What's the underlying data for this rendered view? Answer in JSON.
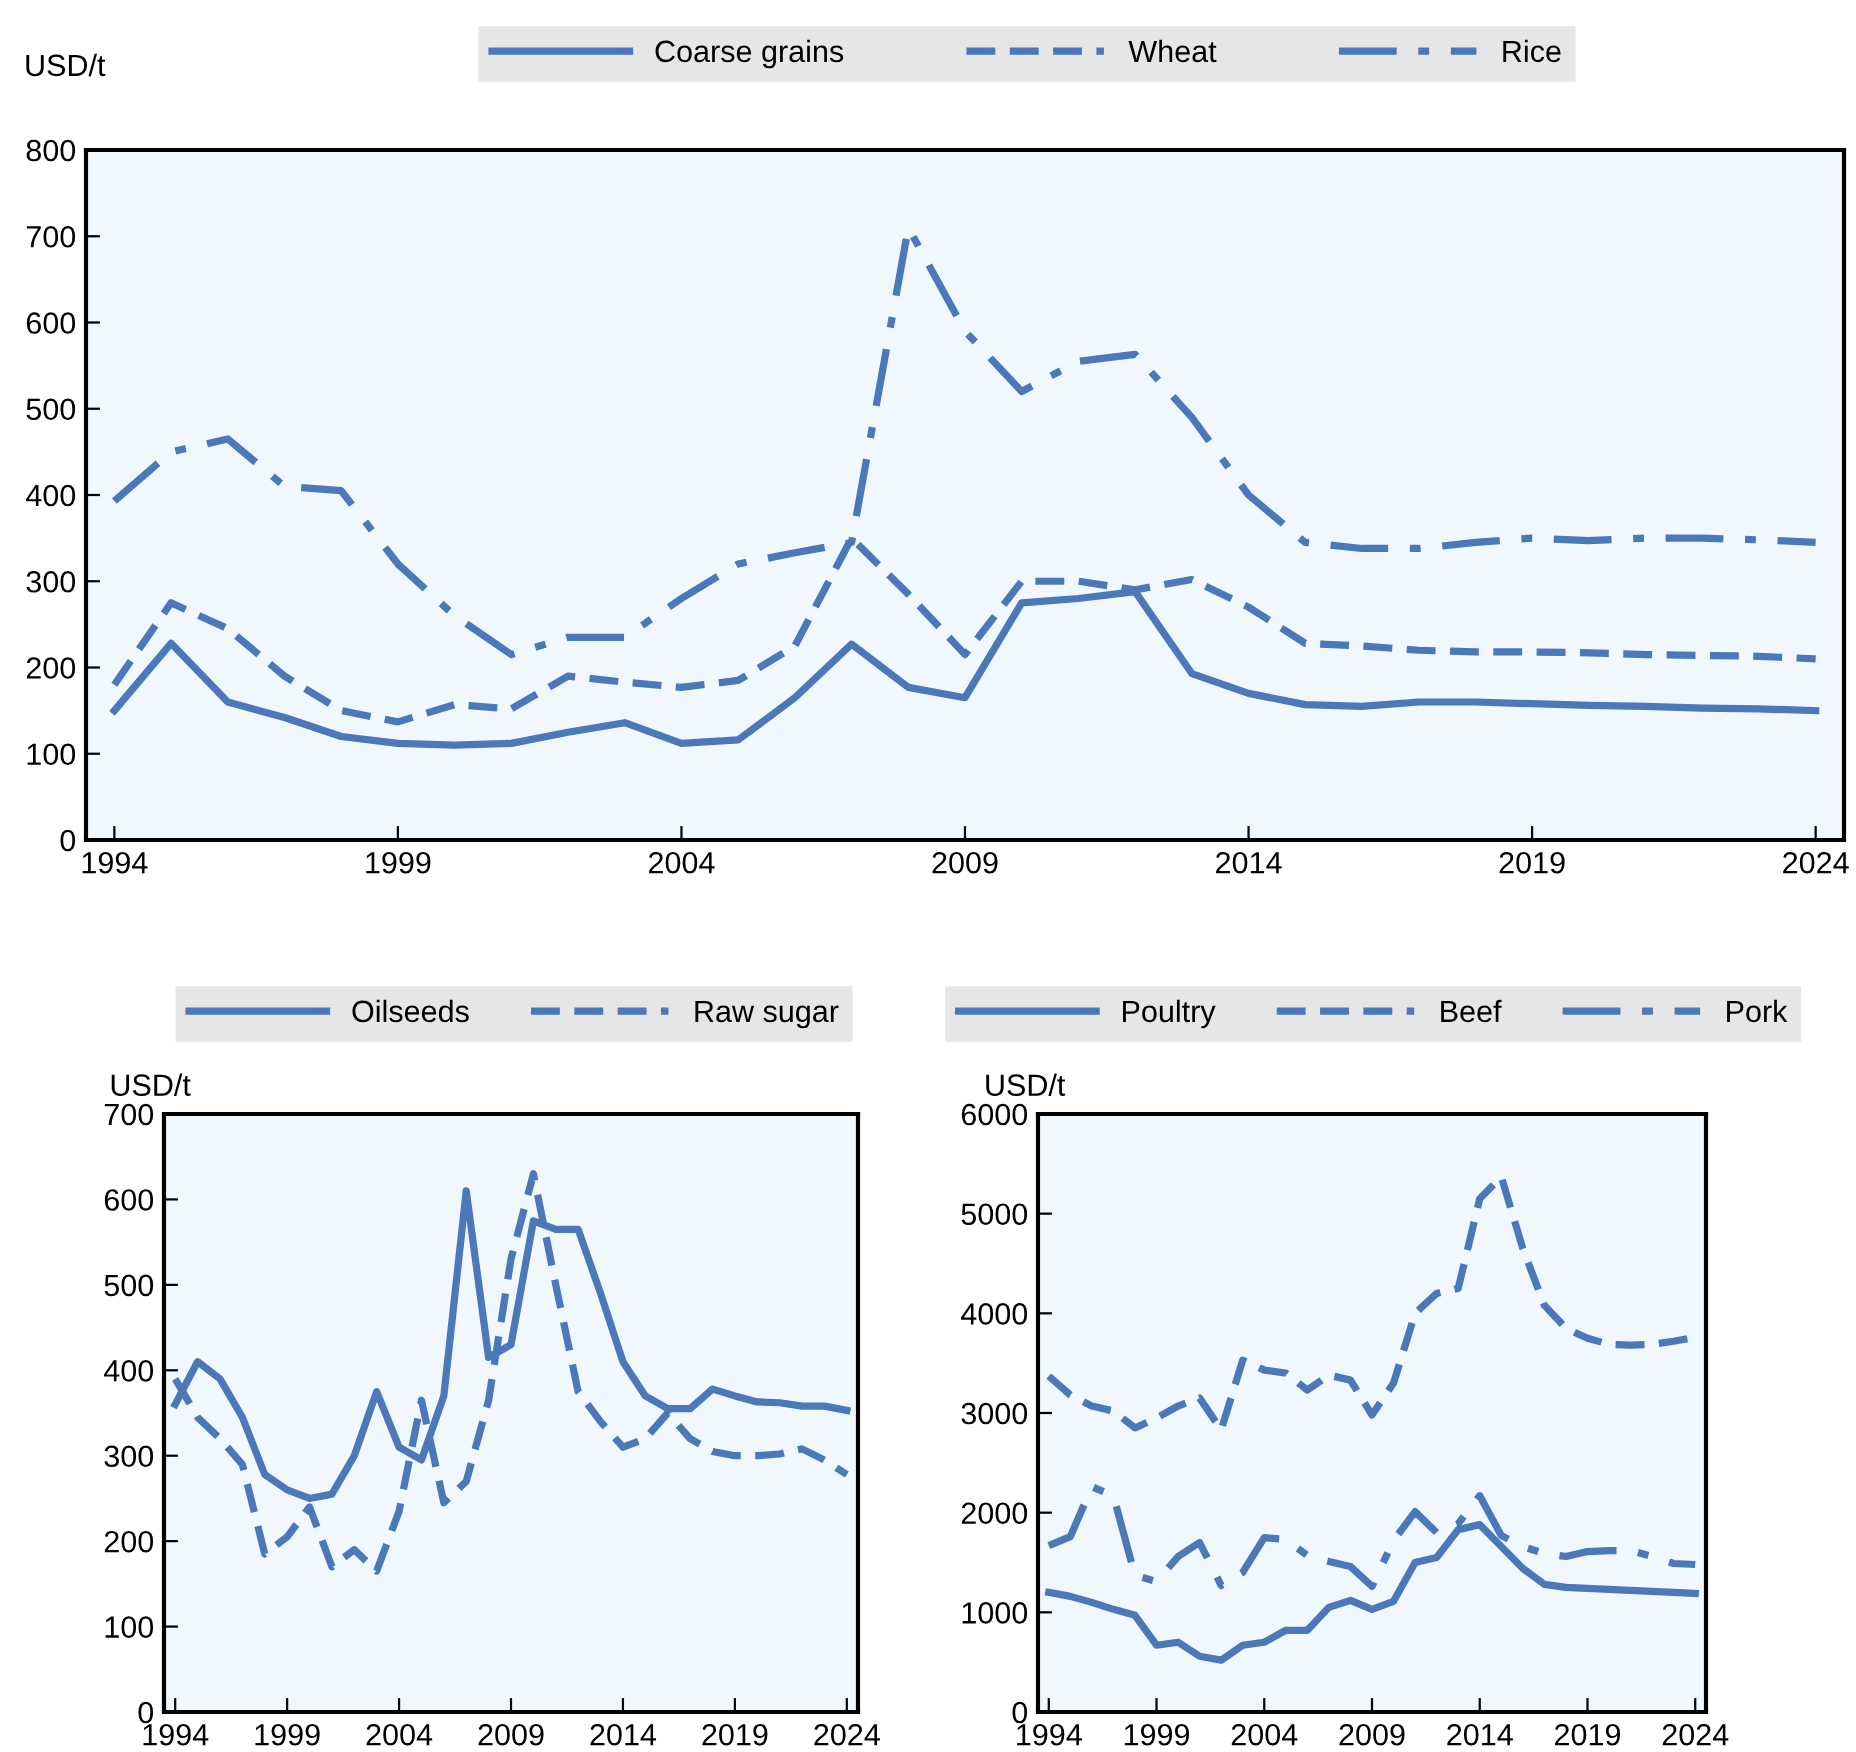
{
  "chart_data": [
    {
      "type": "line",
      "ylabel": "USD/t",
      "x": [
        1994,
        1995,
        1996,
        1997,
        1998,
        1999,
        2000,
        2001,
        2002,
        2003,
        2004,
        2005,
        2006,
        2007,
        2008,
        2009,
        2010,
        2011,
        2012,
        2013,
        2014,
        2015,
        2016,
        2017,
        2018,
        2019,
        2020,
        2021,
        2022,
        2023,
        2024
      ],
      "xlim": [
        1993.5,
        2024.5
      ],
      "xticks": [
        1994,
        1999,
        2004,
        2009,
        2014,
        2019,
        2024
      ],
      "ylim": [
        0,
        800
      ],
      "yticks": [
        0,
        100,
        200,
        300,
        400,
        500,
        600,
        700,
        800
      ],
      "legend": "top",
      "grid": false,
      "series": [
        {
          "name": "Coarse grains",
          "color": "#4a78b8",
          "line_style": "solid",
          "values": [
            150,
            228,
            160,
            142,
            120,
            112,
            110,
            112,
            125,
            136,
            112,
            116,
            165,
            227,
            177,
            165,
            275,
            280,
            288,
            193,
            170,
            157,
            155,
            160,
            160,
            158,
            156,
            155,
            153,
            152,
            150
          ]
        },
        {
          "name": "Wheat",
          "color": "#4a78b8",
          "line_style": "dashed",
          "values": [
            180,
            275,
            245,
            190,
            150,
            137,
            157,
            152,
            190,
            183,
            177,
            185,
            225,
            350,
            285,
            215,
            300,
            300,
            290,
            302,
            270,
            228,
            225,
            220,
            218,
            218,
            217,
            215,
            214,
            213,
            210
          ]
        },
        {
          "name": "Rice",
          "color": "#4a78b8",
          "line_style": "dashdot",
          "values": [
            393,
            450,
            465,
            410,
            405,
            320,
            260,
            215,
            235,
            235,
            280,
            320,
            333,
            345,
            710,
            590,
            520,
            555,
            563,
            490,
            400,
            345,
            338,
            338,
            345,
            350,
            347,
            350,
            350,
            348,
            345
          ]
        }
      ]
    },
    {
      "type": "line",
      "ylabel": "USD/t",
      "x": [
        1994,
        1995,
        1996,
        1997,
        1998,
        1999,
        2000,
        2001,
        2002,
        2003,
        2004,
        2005,
        2006,
        2007,
        2008,
        2009,
        2010,
        2011,
        2012,
        2013,
        2014,
        2015,
        2016,
        2017,
        2018,
        2019,
        2020,
        2021,
        2022,
        2023,
        2024
      ],
      "xlim": [
        1993.5,
        2024.5
      ],
      "xticks": [
        1994,
        1999,
        2004,
        2009,
        2014,
        2019,
        2024
      ],
      "ylim": [
        0,
        700
      ],
      "yticks": [
        0,
        100,
        200,
        300,
        400,
        500,
        600,
        700
      ],
      "legend": "top",
      "grid": false,
      "series": [
        {
          "name": "Oilseeds",
          "color": "#4a78b8",
          "line_style": "solid",
          "values": [
            360,
            410,
            390,
            345,
            278,
            260,
            250,
            255,
            300,
            375,
            310,
            295,
            370,
            610,
            415,
            430,
            575,
            565,
            565,
            490,
            410,
            370,
            355,
            355,
            378,
            370,
            363,
            362,
            358,
            358,
            353
          ]
        },
        {
          "name": "Raw sugar",
          "color": "#4a78b8",
          "line_style": "dashed",
          "values": [
            390,
            345,
            320,
            290,
            185,
            205,
            240,
            170,
            190,
            165,
            235,
            365,
            245,
            270,
            365,
            530,
            630,
            500,
            375,
            340,
            310,
            320,
            350,
            320,
            305,
            300,
            300,
            302,
            308,
            295,
            278
          ]
        }
      ]
    },
    {
      "type": "line",
      "ylabel": "USD/t",
      "x": [
        1994,
        1995,
        1996,
        1997,
        1998,
        1999,
        2000,
        2001,
        2002,
        2003,
        2004,
        2005,
        2006,
        2007,
        2008,
        2009,
        2010,
        2011,
        2012,
        2013,
        2014,
        2015,
        2016,
        2017,
        2018,
        2019,
        2020,
        2021,
        2022,
        2023,
        2024
      ],
      "xlim": [
        1993.5,
        2024.5
      ],
      "xticks": [
        1994,
        1999,
        2004,
        2009,
        2014,
        2019,
        2024
      ],
      "ylim": [
        0,
        6000
      ],
      "yticks": [
        0,
        1000,
        2000,
        3000,
        4000,
        5000,
        6000
      ],
      "legend": "top",
      "grid": false,
      "series": [
        {
          "name": "Poultry",
          "color": "#4a78b8",
          "line_style": "solid",
          "values": [
            1200,
            1160,
            1100,
            1030,
            970,
            670,
            700,
            560,
            520,
            670,
            700,
            820,
            820,
            1050,
            1120,
            1030,
            1110,
            1500,
            1550,
            1830,
            1880,
            1660,
            1440,
            1280,
            1250,
            1240,
            1230,
            1220,
            1210,
            1200,
            1190
          ]
        },
        {
          "name": "Beef",
          "color": "#4a78b8",
          "line_style": "dashed",
          "values": [
            3370,
            3180,
            3070,
            3020,
            2850,
            2950,
            3070,
            3150,
            2830,
            3530,
            3430,
            3400,
            3230,
            3380,
            3330,
            2980,
            3300,
            4000,
            4200,
            4250,
            5150,
            5370,
            4650,
            4080,
            3850,
            3750,
            3690,
            3680,
            3690,
            3720,
            3760
          ]
        },
        {
          "name": "Pork",
          "color": "#4a78b8",
          "line_style": "dashdot",
          "values": [
            1670,
            1760,
            2260,
            2170,
            1370,
            1310,
            1560,
            1700,
            1270,
            1400,
            1750,
            1730,
            1570,
            1510,
            1460,
            1260,
            1720,
            2010,
            1800,
            1890,
            2170,
            1770,
            1660,
            1590,
            1560,
            1610,
            1620,
            1620,
            1560,
            1490,
            1480
          ]
        }
      ]
    }
  ]
}
